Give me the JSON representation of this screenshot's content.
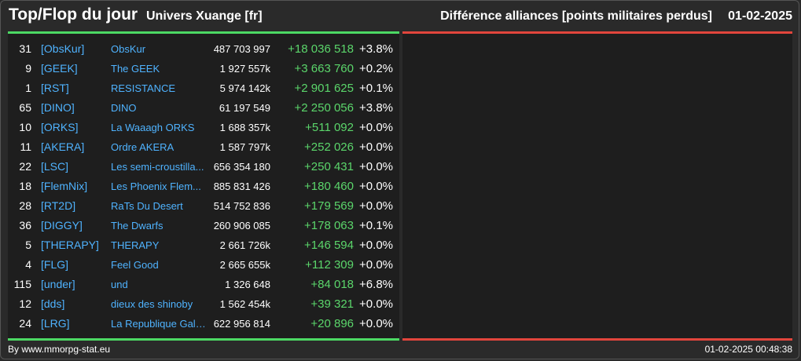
{
  "header": {
    "title": "Top/Flop du jour",
    "universe": "Univers Xuange [fr]",
    "subtitle": "Différence alliances [points militaires perdus]",
    "date": "01-02-2025"
  },
  "top_rows": [
    {
      "rank": "31",
      "tag": "[ObsKur]",
      "name": "ObsKur",
      "points": "487 703 997",
      "diff": "+18 036 518",
      "pct": "+3.8%"
    },
    {
      "rank": "9",
      "tag": "[GEEK]",
      "name": "The GEEK",
      "points": "1 927 557k",
      "diff": "+3 663 760",
      "pct": "+0.2%"
    },
    {
      "rank": "1",
      "tag": "[RST]",
      "name": "RESISTANCE",
      "points": "5 974 142k",
      "diff": "+2 901 625",
      "pct": "+0.1%"
    },
    {
      "rank": "65",
      "tag": "[DINO]",
      "name": "DINO",
      "points": "61 197 549",
      "diff": "+2 250 056",
      "pct": "+3.8%"
    },
    {
      "rank": "10",
      "tag": "[ORKS]",
      "name": "La Waaagh ORKS",
      "points": "1 688 357k",
      "diff": "+511 092",
      "pct": "+0.0%"
    },
    {
      "rank": "11",
      "tag": "[AKERA]",
      "name": "Ordre AKERA",
      "points": "1 587 797k",
      "diff": "+252 026",
      "pct": "+0.0%"
    },
    {
      "rank": "22",
      "tag": "[LSC]",
      "name": "Les semi-croustilla...",
      "points": "656 354 180",
      "diff": "+250 431",
      "pct": "+0.0%"
    },
    {
      "rank": "18",
      "tag": "[FlemNix]",
      "name": "Les Phoenix Flem...",
      "points": "885 831 426",
      "diff": "+180 460",
      "pct": "+0.0%"
    },
    {
      "rank": "28",
      "tag": "[RT2D]",
      "name": "RaTs Du Desert",
      "points": "514 752 836",
      "diff": "+179 569",
      "pct": "+0.0%"
    },
    {
      "rank": "36",
      "tag": "[DIGGY]",
      "name": "The Dwarfs",
      "points": "260 906 085",
      "diff": "+178 063",
      "pct": "+0.1%"
    },
    {
      "rank": "5",
      "tag": "[THERAPY]",
      "name": "THERAPY",
      "points": "2 661 726k",
      "diff": "+146 594",
      "pct": "+0.0%"
    },
    {
      "rank": "4",
      "tag": "[FLG]",
      "name": "Feel Good",
      "points": "2 665 655k",
      "diff": "+112 309",
      "pct": "+0.0%"
    },
    {
      "rank": "115",
      "tag": "[under]",
      "name": "und",
      "points": "1 326 648",
      "diff": "+84 018",
      "pct": "+6.8%"
    },
    {
      "rank": "12",
      "tag": "[dds]",
      "name": "dieux des shinoby",
      "points": "1 562 454k",
      "diff": "+39 321",
      "pct": "+0.0%"
    },
    {
      "rank": "24",
      "tag": "[LRG]",
      "name": "La Republique Gala...",
      "points": "622 956 814",
      "diff": "+20 896",
      "pct": "+0.0%"
    }
  ],
  "footer": {
    "credit": "By www.mmorpg-stat.eu",
    "timestamp": "01-02-2025 00:48:38"
  },
  "colors": {
    "top_accent": "#4cd964",
    "flop_accent": "#e2453c",
    "link": "#4fb3ff",
    "gain": "#5bd66b"
  }
}
